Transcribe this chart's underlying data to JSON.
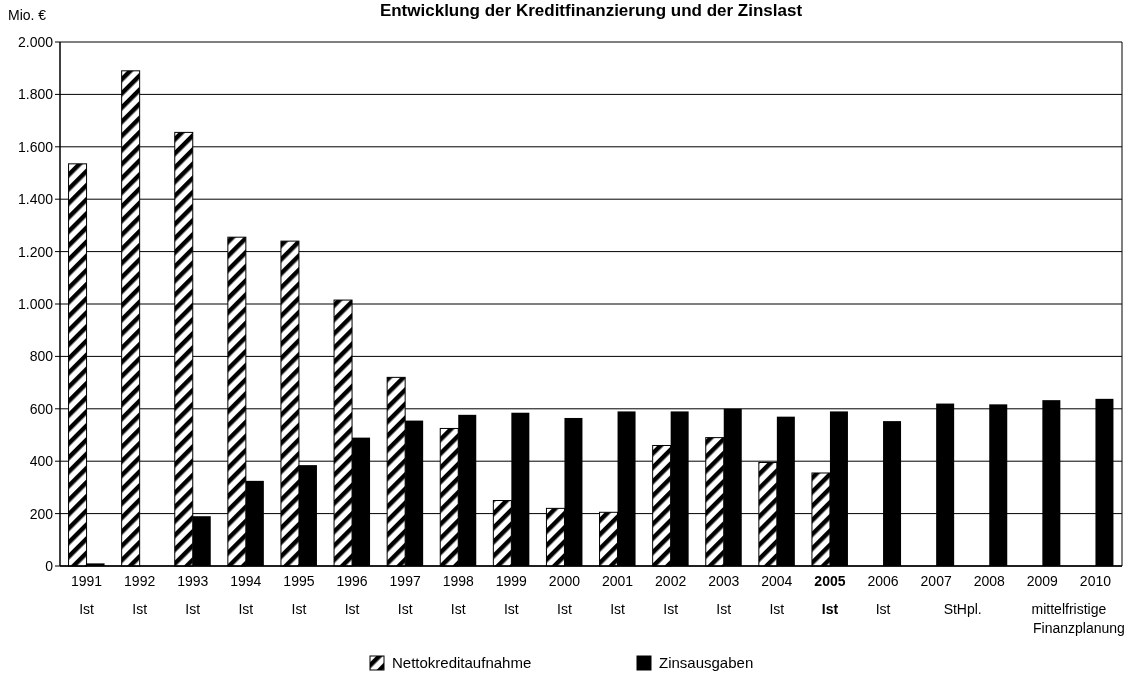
{
  "chart_data": {
    "type": "bar",
    "title": "Entwicklung der Kreditfinanzierung und der Zinslast",
    "ylabel": "Mio. €",
    "categories": [
      "1991\nIst",
      "1992\nIst",
      "1993\nIst",
      "1994\nIst",
      "1995\nIst",
      "1996\nIst",
      "1997\nIst",
      "1998\nIst",
      "1999\nIst",
      "2000\nIst",
      "2001\nIst",
      "2002\nIst",
      "2003\nIst",
      "2004\nIst",
      "2005\nIst",
      "2006\nIst",
      "2007",
      "2008",
      "2009",
      "2010"
    ],
    "series": [
      {
        "name": "Nettokreditaufnahme",
        "color": "#000000",
        "values": [
          1535,
          1890,
          1655,
          1255,
          1240,
          1015,
          720,
          525,
          250,
          220,
          205,
          460,
          490,
          395,
          355,
          null,
          null,
          null,
          null,
          null
        ]
      },
      {
        "name": "Zinsausgaben",
        "color": "#000000",
        "values": [
          10,
          null,
          190,
          325,
          385,
          490,
          555,
          577,
          585,
          565,
          590,
          590,
          600,
          570,
          590,
          553,
          620,
          617,
          633,
          638
        ]
      }
    ],
    "annotations": [
      "StHpl.",
      "mittelfristige Finanzplanung"
    ],
    "ylim": [
      0,
      2000
    ],
    "yticks": [
      0,
      200,
      400,
      600,
      800,
      {
        "value": 1000,
        "label": "1.000"
      },
      {
        "value": 1200,
        "label": "1.200"
      },
      {
        "value": 1400,
        "label": "1.400"
      },
      {
        "value": 1600,
        "label": "1.600"
      },
      {
        "value": 1800,
        "label": "1.800"
      },
      {
        "value": 2000,
        "label": "2.000"
      }
    ],
    "grid": "y",
    "legend": "bottom"
  }
}
